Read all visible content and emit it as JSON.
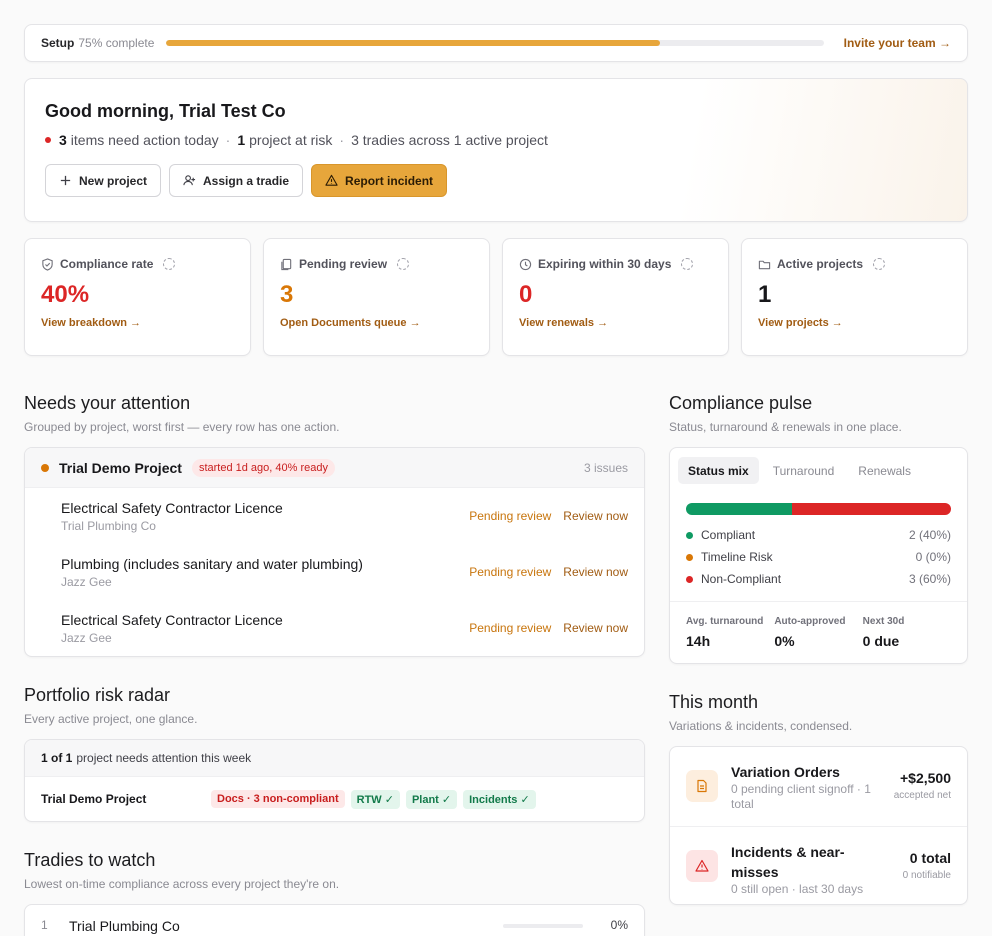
{
  "setup": {
    "label": "Setup",
    "percent_text": "75% complete",
    "progress": 0.75,
    "invite": "Invite your team →"
  },
  "hero": {
    "greeting": "Good morning, Trial Test Co",
    "actions_count": "3",
    "actions_text": "items need action today",
    "risk_count": "1",
    "risk_text": "project at risk",
    "tradies_text": "3 tradies across 1 active project",
    "btn_new_project": "New project",
    "btn_assign": "Assign a tradie",
    "btn_report": "Report incident"
  },
  "kpis": [
    {
      "label": "Compliance rate",
      "value": "40%",
      "link": "View breakdown →",
      "color": "#dc2626",
      "icon": "shield-icon"
    },
    {
      "label": "Pending review",
      "value": "3",
      "link": "Open Documents queue →",
      "color": "#d97706",
      "icon": "documents-icon"
    },
    {
      "label": "Expiring within 30 days",
      "value": "0",
      "link": "View renewals →",
      "color": "#dc2626",
      "icon": "clock-icon"
    },
    {
      "label": "Active projects",
      "value": "1",
      "link": "View projects →",
      "color": "#18181b",
      "icon": "folder-icon"
    }
  ],
  "attention": {
    "title": "Needs your attention",
    "subtitle": "Grouped by project, worst first — every row has one action.",
    "project": "Trial Demo Project",
    "badge": "started 1d ago, 40% ready",
    "count": "3 issues",
    "rows": [
      {
        "title": "Electrical Safety Contractor Licence",
        "sub": "Trial Plumbing Co",
        "status": "Pending review",
        "action": "Review now"
      },
      {
        "title": "Plumbing (includes sanitary and water plumbing)",
        "sub": "Jazz Gee",
        "status": "Pending review",
        "action": "Review now"
      },
      {
        "title": "Electrical Safety Contractor Licence",
        "sub": "Jazz Gee",
        "status": "Pending review",
        "action": "Review now"
      }
    ]
  },
  "radar": {
    "title": "Portfolio risk radar",
    "subtitle": "Every active project, one glance.",
    "header_bold": "1 of 1",
    "header_text": "project needs attention this week",
    "project": "Trial Demo Project",
    "tags": {
      "docs": "Docs · 3 non-compliant",
      "rtw": "RTW ✓",
      "plant": "Plant ✓",
      "incidents": "Incidents ✓"
    }
  },
  "tradies": {
    "title": "Tradies to watch",
    "subtitle": "Lowest on-time compliance across every project they're on.",
    "rows": [
      {
        "index": "1",
        "name": "Trial Plumbing Co",
        "percent": "0%",
        "value": 0
      }
    ]
  },
  "pulse": {
    "title": "Compliance pulse",
    "subtitle": "Status, turnaround & renewals in one place.",
    "tabs": [
      "Status mix",
      "Turnaround",
      "Renewals"
    ],
    "mix": [
      {
        "label": "Compliant",
        "value": "2 (40%)",
        "share": 0.4,
        "color": "#0f9a63"
      },
      {
        "label": "Timeline Risk",
        "value": "0 (0%)",
        "share": 0,
        "color": "#d97706"
      },
      {
        "label": "Non-Compliant",
        "value": "3 (60%)",
        "share": 0.6,
        "color": "#dc2626"
      }
    ],
    "stats": [
      {
        "label": "Avg. turnaround",
        "value": "14h"
      },
      {
        "label": "Auto-approved",
        "value": "0%"
      },
      {
        "label": "Next 30d",
        "value": "0 due"
      }
    ]
  },
  "month": {
    "title": "This month",
    "subtitle": "Variations & incidents, condensed.",
    "variation": {
      "title": "Variation Orders",
      "sub": "0 pending client signoff · 1 total",
      "value": "+$2,500",
      "value_sub": "accepted net"
    },
    "incidents": {
      "title": "Incidents & near-misses",
      "sub": "0 still open · last 30 days",
      "value": "0 total",
      "value_sub": "0 notifiable"
    }
  }
}
